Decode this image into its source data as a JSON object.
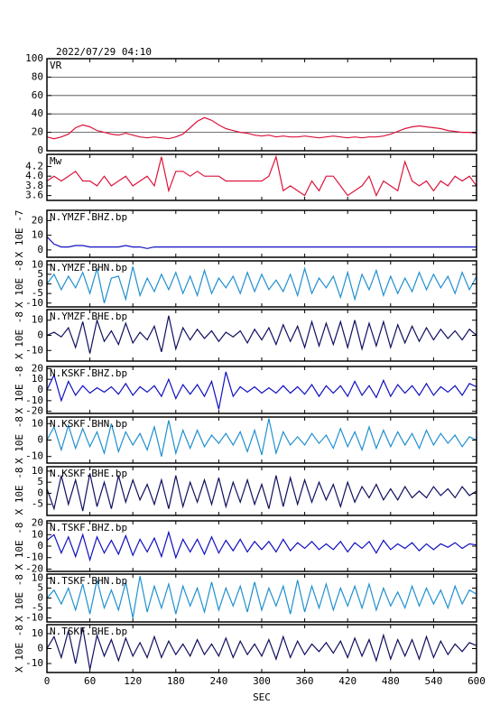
{
  "chart_data": {
    "type": "line",
    "title": "2022/07/29 04:10",
    "xlabel": "SEC",
    "x": [
      0,
      10,
      20,
      30,
      40,
      50,
      60,
      70,
      80,
      90,
      100,
      110,
      120,
      130,
      140,
      150,
      160,
      170,
      180,
      190,
      200,
      210,
      220,
      230,
      240,
      250,
      260,
      270,
      280,
      290,
      300,
      310,
      320,
      330,
      340,
      350,
      360,
      370,
      380,
      390,
      400,
      410,
      420,
      430,
      440,
      450,
      460,
      470,
      480,
      490,
      500,
      510,
      520,
      530,
      540,
      550,
      560,
      570,
      580,
      590,
      600
    ],
    "xlim": [
      0,
      600
    ],
    "xticks": [
      0,
      60,
      120,
      180,
      240,
      300,
      360,
      420,
      480,
      540,
      600
    ],
    "panels": [
      {
        "name": "VR",
        "color": "#dc143c",
        "grid": true,
        "ylim": [
          0,
          100
        ],
        "yticks": [
          0,
          20,
          40,
          60,
          80,
          100
        ],
        "values": [
          15,
          13,
          15,
          18,
          25,
          28,
          26,
          22,
          20,
          18,
          17,
          19,
          17,
          15,
          14,
          15,
          14,
          13,
          15,
          18,
          25,
          32,
          36,
          33,
          28,
          24,
          22,
          20,
          19,
          17,
          16,
          17,
          15,
          16,
          15,
          15,
          16,
          15,
          14,
          15,
          16,
          15,
          14,
          15,
          14,
          15,
          15,
          16,
          18,
          21,
          24,
          26,
          27,
          26,
          25,
          24,
          22,
          21,
          20,
          20,
          19
        ]
      },
      {
        "name": "Mw",
        "color": "#dc143c",
        "ylim": [
          3.5,
          4.45
        ],
        "yticks": [
          3.6,
          3.8,
          {
            "value": 4,
            "label": "4.0"
          },
          4.2
        ],
        "values": [
          3.9,
          4.0,
          3.9,
          4.0,
          4.1,
          3.9,
          3.9,
          3.8,
          4.0,
          3.8,
          3.9,
          4.0,
          3.8,
          3.9,
          4.0,
          3.8,
          4.4,
          3.7,
          4.1,
          4.1,
          4.0,
          4.1,
          4.0,
          4.0,
          4.0,
          3.9,
          3.9,
          3.9,
          3.9,
          3.9,
          3.9,
          4.0,
          4.4,
          3.7,
          3.8,
          3.7,
          3.6,
          3.9,
          3.7,
          4.0,
          4.0,
          3.8,
          3.6,
          3.7,
          3.8,
          4.0,
          3.6,
          3.9,
          3.8,
          3.7,
          4.3,
          3.9,
          3.8,
          3.9,
          3.7,
          3.9,
          3.8,
          4.0,
          3.9,
          4.0,
          3.8
        ]
      },
      {
        "name": "N.YMZF.BHZ.bp",
        "ylabel": "X 10E -7",
        "color": "#1010c0",
        "ylim": [
          -5,
          27
        ],
        "yticks": [
          0,
          10,
          20
        ],
        "values": [
          9,
          4,
          2,
          2,
          3,
          3,
          2,
          2,
          2,
          2,
          2,
          3,
          2,
          2,
          1,
          2,
          2,
          2,
          2,
          2,
          2,
          2,
          2,
          2,
          2,
          2,
          2,
          2,
          2,
          2,
          2,
          2,
          2,
          2,
          2,
          2,
          2,
          2,
          2,
          2,
          2,
          2,
          2,
          2,
          2,
          2,
          2,
          2,
          2,
          2,
          2,
          2,
          2,
          2,
          2,
          2,
          2,
          2,
          2,
          2,
          2
        ]
      },
      {
        "name": "N.YMZF.BHN.bp",
        "ylabel": "X 10E -8",
        "color": "#2090d0",
        "ylim": [
          -12,
          12
        ],
        "yticks": [
          -10,
          -5,
          0,
          5,
          10
        ],
        "values": [
          0,
          5,
          -3,
          4,
          -2,
          6,
          -5,
          8,
          -10,
          3,
          4,
          -8,
          9,
          -6,
          3,
          -4,
          5,
          -3,
          6,
          -5,
          4,
          -6,
          7,
          -5,
          3,
          -2,
          4,
          -5,
          6,
          -4,
          5,
          -3,
          2,
          -4,
          5,
          -6,
          8,
          -5,
          3,
          -2,
          4,
          -7,
          6,
          -8,
          5,
          -3,
          7,
          -6,
          4,
          -5,
          3,
          -4,
          6,
          -3,
          5,
          -2,
          4,
          -5,
          6,
          -3,
          4
        ]
      },
      {
        "name": "N.YMZF.BHE.bp",
        "ylabel": "X 10E -8",
        "color": "#101060",
        "ylim": [
          -17,
          17
        ],
        "yticks": [
          -10,
          0,
          10
        ],
        "values": [
          0,
          2,
          -1,
          5,
          -8,
          9,
          -12,
          10,
          -4,
          3,
          -6,
          8,
          -5,
          2,
          -3,
          6,
          -11,
          13,
          -9,
          5,
          -3,
          4,
          -2,
          3,
          -4,
          2,
          -1,
          3,
          -5,
          4,
          -3,
          5,
          -6,
          7,
          -4,
          6,
          -8,
          9,
          -7,
          8,
          -6,
          9,
          -8,
          10,
          -9,
          8,
          -7,
          9,
          -8,
          7,
          -5,
          6,
          -4,
          5,
          -3,
          4,
          -2,
          3,
          -3,
          4,
          0
        ]
      },
      {
        "name": "N.KSKF.BHZ.bp",
        "ylabel": "X 10E -8",
        "color": "#1010c0",
        "ylim": [
          -22,
          22
        ],
        "yticks": [
          -20,
          -10,
          0,
          10,
          20
        ],
        "values": [
          0,
          14,
          -10,
          8,
          -5,
          4,
          -3,
          2,
          -2,
          3,
          -4,
          6,
          -5,
          3,
          -2,
          4,
          -6,
          10,
          -8,
          5,
          -4,
          5,
          -6,
          8,
          -18,
          17,
          -6,
          3,
          -2,
          3,
          -3,
          2,
          -3,
          4,
          -3,
          3,
          -4,
          5,
          -6,
          4,
          -3,
          4,
          -6,
          8,
          -5,
          4,
          -7,
          9,
          -6,
          5,
          -3,
          4,
          -5,
          6,
          -5,
          3,
          -2,
          4,
          -5,
          6,
          3
        ]
      },
      {
        "name": "N.KSKF.BHN.bp",
        "ylabel": "X 10E -8",
        "color": "#2090d0",
        "ylim": [
          -14,
          14
        ],
        "yticks": [
          -10,
          0,
          10
        ],
        "values": [
          0,
          8,
          -6,
          9,
          -5,
          7,
          -4,
          5,
          -8,
          10,
          -7,
          5,
          -3,
          4,
          -6,
          8,
          -10,
          12,
          -8,
          6,
          -5,
          6,
          -4,
          3,
          -2,
          4,
          -3,
          5,
          -7,
          6,
          -9,
          13,
          -8,
          5,
          -3,
          2,
          -3,
          4,
          -2,
          3,
          -5,
          7,
          -4,
          5,
          -6,
          8,
          -5,
          6,
          -4,
          5,
          -3,
          4,
          -5,
          6,
          -3,
          4,
          -2,
          3,
          -4,
          2,
          0
        ]
      },
      {
        "name": "N.KSKF.BHE.bp",
        "ylabel": "X 10E -8",
        "color": "#101060",
        "ylim": [
          -10,
          12
        ],
        "yticks": [
          -5,
          0,
          5,
          10
        ],
        "values": [
          2,
          -7,
          8,
          -5,
          6,
          -8,
          9,
          -6,
          5,
          -7,
          8,
          -4,
          6,
          -3,
          4,
          -5,
          6,
          -7,
          8,
          -6,
          5,
          -4,
          6,
          -5,
          7,
          -6,
          5,
          -4,
          6,
          -5,
          4,
          -7,
          8,
          -6,
          7,
          -5,
          6,
          -4,
          5,
          -3,
          4,
          -6,
          5,
          -4,
          3,
          -2,
          4,
          -3,
          2,
          -3,
          3,
          -2,
          1,
          -2,
          3,
          -1,
          2,
          -2,
          3,
          -1,
          1
        ]
      },
      {
        "name": "N.TSKF.BHZ.bp",
        "ylabel": "X 10E -8",
        "color": "#1010c0",
        "ylim": [
          -22,
          22
        ],
        "yticks": [
          -20,
          -10,
          0,
          10,
          20
        ],
        "values": [
          5,
          10,
          -6,
          8,
          -9,
          10,
          -12,
          8,
          -6,
          5,
          -7,
          9,
          -8,
          6,
          -5,
          7,
          -9,
          12,
          -10,
          6,
          -5,
          6,
          -7,
          8,
          -6,
          5,
          -4,
          6,
          -5,
          4,
          -3,
          4,
          -5,
          6,
          -4,
          3,
          -2,
          4,
          -3,
          2,
          -3,
          4,
          -5,
          3,
          -2,
          4,
          -6,
          5,
          -3,
          2,
          -2,
          3,
          -4,
          2,
          -3,
          2,
          -1,
          3,
          -2,
          2,
          1
        ]
      },
      {
        "name": "N.TSKF.BHN.bp",
        "ylabel": "X 10E -8",
        "color": "#2090d0",
        "ylim": [
          -12,
          12
        ],
        "yticks": [
          -10,
          -5,
          0,
          5,
          10
        ],
        "values": [
          0,
          4,
          -3,
          5,
          -6,
          7,
          -8,
          9,
          -5,
          4,
          -6,
          8,
          -10,
          11,
          -7,
          6,
          -5,
          7,
          -8,
          6,
          -4,
          5,
          -7,
          8,
          -6,
          5,
          -4,
          6,
          -7,
          8,
          -6,
          5,
          -4,
          6,
          -8,
          9,
          -7,
          6,
          -5,
          7,
          -6,
          5,
          -4,
          6,
          -5,
          7,
          -6,
          5,
          -4,
          3,
          -5,
          6,
          -4,
          5,
          -3,
          4,
          -5,
          6,
          -3,
          4,
          2
        ]
      },
      {
        "name": "N.TSKF.BHE.bp",
        "ylabel": "X 10E -8",
        "color": "#101060",
        "ylim": [
          -16,
          16
        ],
        "yticks": [
          -10,
          0,
          10
        ],
        "values": [
          0,
          8,
          -6,
          12,
          -10,
          14,
          -14,
          9,
          -5,
          6,
          -8,
          7,
          -5,
          4,
          -6,
          8,
          -6,
          5,
          -4,
          3,
          -5,
          6,
          -4,
          3,
          -5,
          7,
          -6,
          5,
          -4,
          3,
          -5,
          6,
          -7,
          8,
          -6,
          5,
          -4,
          3,
          -2,
          4,
          -3,
          5,
          -6,
          7,
          -5,
          6,
          -8,
          9,
          -7,
          6,
          -5,
          6,
          -7,
          8,
          -6,
          5,
          -4,
          3,
          -2,
          4,
          2
        ]
      }
    ]
  }
}
